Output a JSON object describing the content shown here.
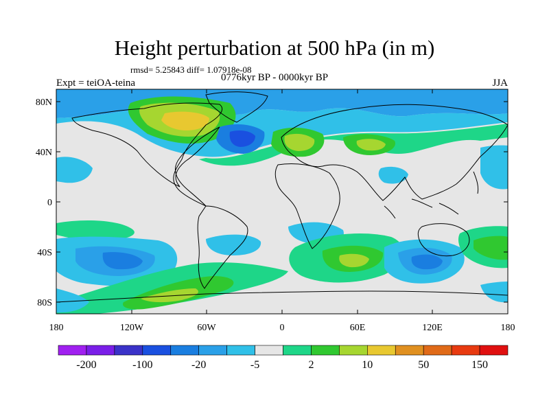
{
  "header": {
    "title": "Height perturbation at 500 hPa (in m)",
    "stats": "rmsd= 5.25843 diff= 1.07918e-08",
    "period": "0776kyr BP - 0000kyr BP",
    "experiment": "Expt = teiOA-teina",
    "season": "JJA"
  },
  "axes": {
    "lat_labels": [
      "80N",
      "40N",
      "0",
      "40S",
      "80S"
    ],
    "lon_labels": [
      "180",
      "120W",
      "60W",
      "0",
      "60E",
      "120E",
      "180"
    ]
  },
  "colorbar": {
    "colors": [
      "#a020f0",
      "#7a1ee8",
      "#3a32c8",
      "#1a50e0",
      "#1a7ee0",
      "#2aa0e8",
      "#30c0e8",
      "#e6e6e6",
      "#1ed688",
      "#30c830",
      "#a6d630",
      "#e8c830",
      "#e09020",
      "#e06a18",
      "#e83a10",
      "#e01010"
    ],
    "labels": [
      "-200",
      "-100",
      "-20",
      "-5",
      "2",
      "10",
      "50",
      "150"
    ]
  },
  "colors": {
    "background_field": "#e6e6e6",
    "coastline": "#000000"
  }
}
